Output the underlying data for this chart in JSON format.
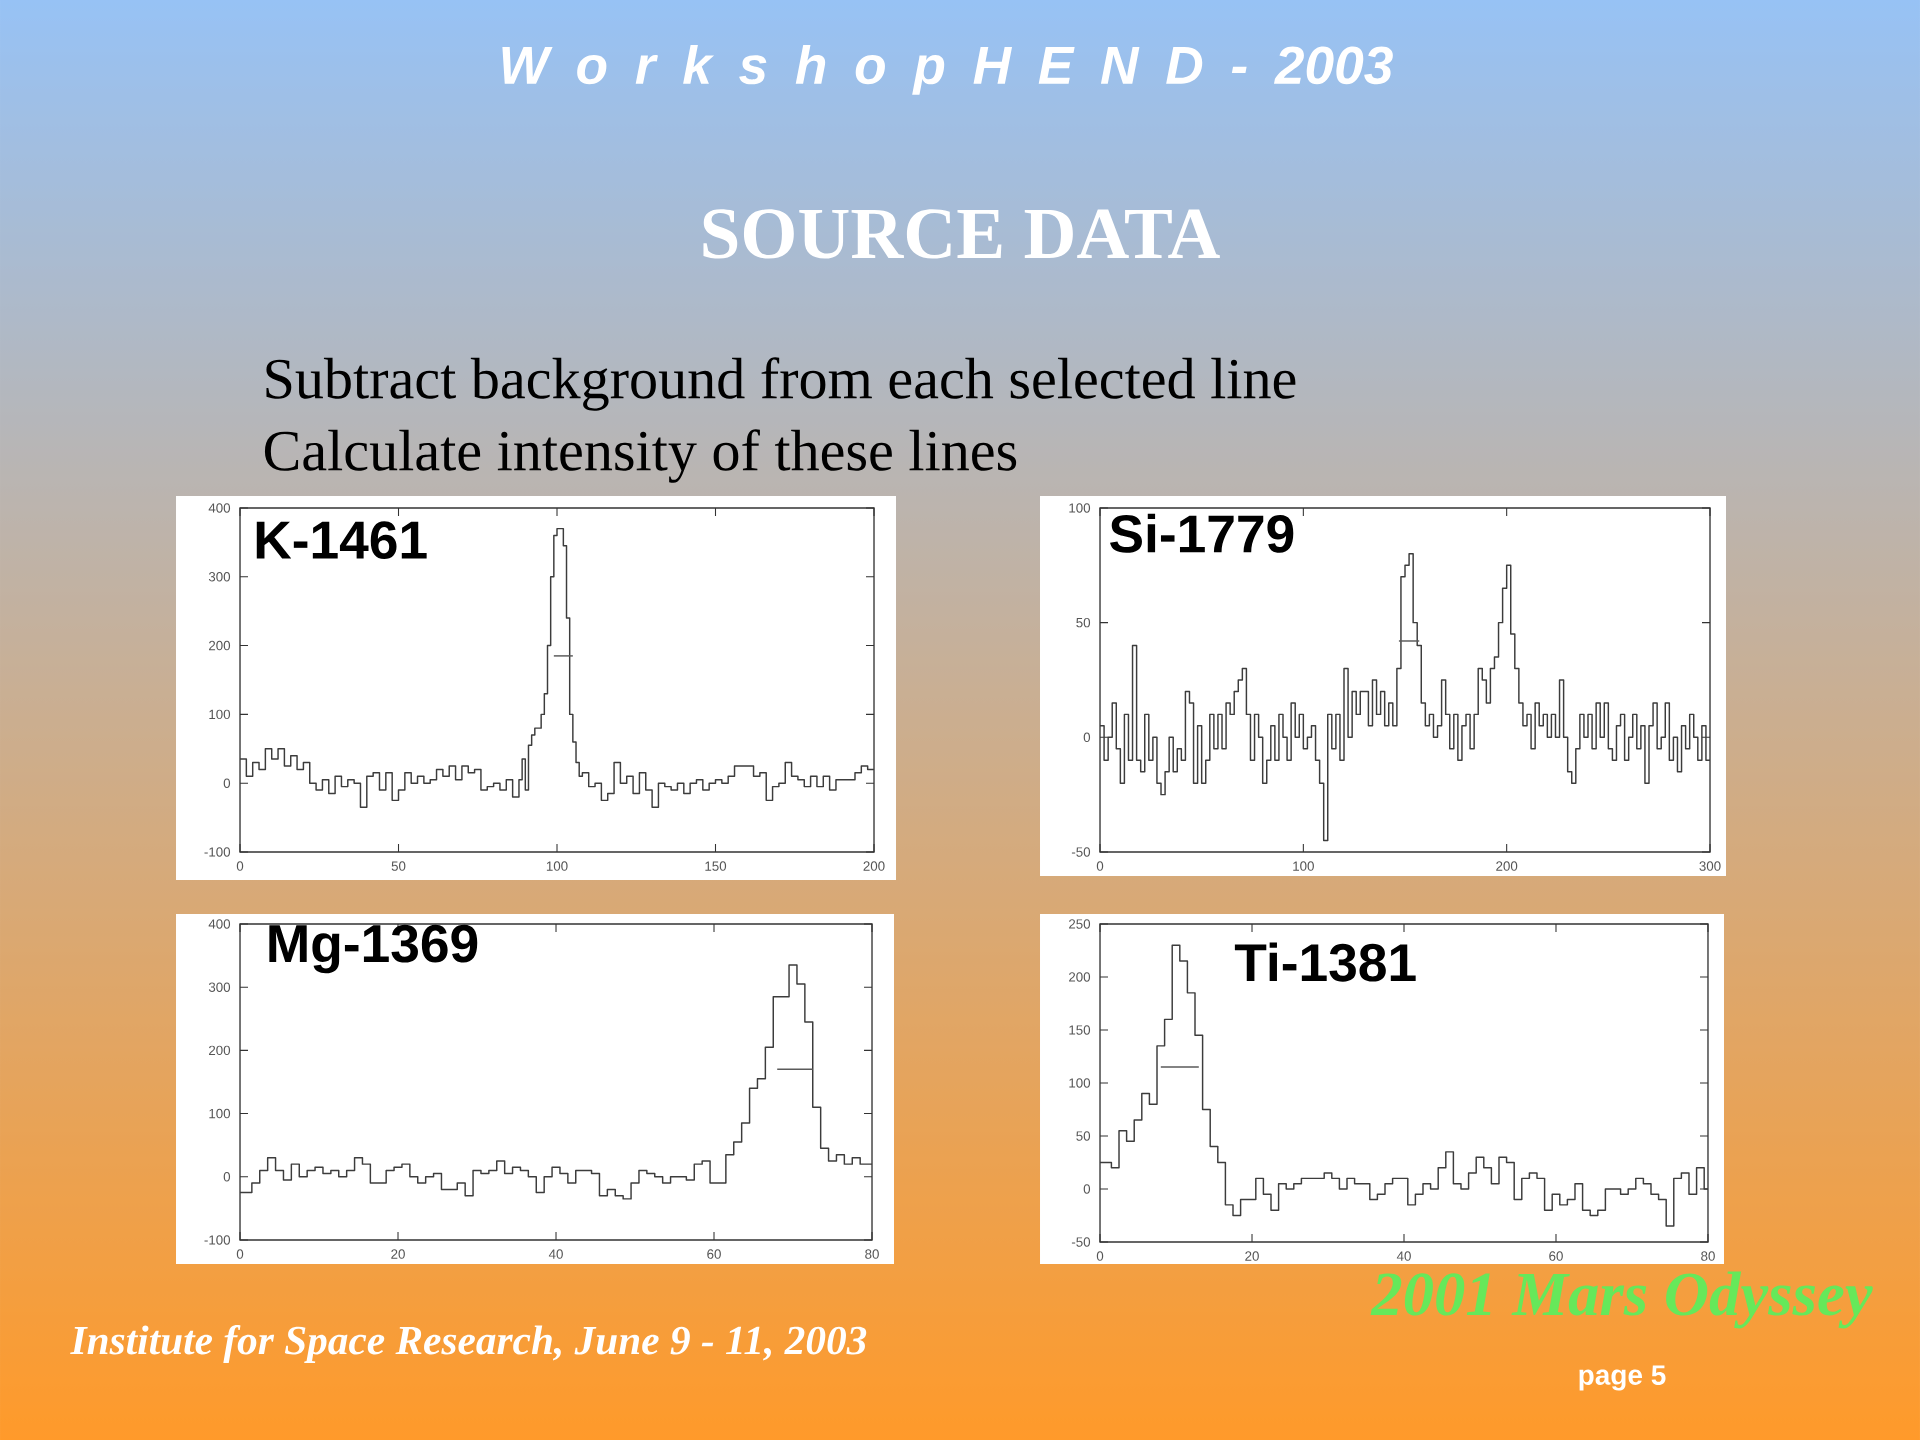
{
  "chart_data": [
    {
      "type": "other",
      "title": "SOURCE DATA",
      "annotations": [
        "W o r k s h o p  H E N D - 2003",
        "Subtract background from each selected line",
        "Calculate intensity of these lines",
        "2001 Mars Odyssey",
        "Institute for Space Research,  June 9 - 11, 2003",
        "page 5"
      ]
    },
    {
      "type": "step",
      "title": "K-1461",
      "xlim": [
        0,
        200
      ],
      "ylim": [
        -100,
        400
      ],
      "xticks": [
        0,
        50,
        100,
        150,
        200
      ],
      "yticks": [
        -100,
        0,
        100,
        200,
        300,
        400
      ],
      "series": [
        {
          "color": "#3c3c3c",
          "x": [
            0,
            2,
            4,
            6,
            8,
            10,
            12,
            14,
            16,
            18,
            20,
            22,
            24,
            26,
            28,
            30,
            32,
            34,
            36,
            38,
            40,
            42,
            44,
            46,
            48,
            50,
            52,
            54,
            56,
            58,
            60,
            62,
            64,
            66,
            68,
            70,
            72,
            74,
            76,
            78,
            80,
            82,
            84,
            86,
            88,
            89,
            90,
            91,
            92,
            93,
            94,
            95,
            96,
            97,
            98,
            99,
            100,
            101,
            102,
            103,
            104,
            105,
            106,
            107,
            108,
            110,
            112,
            114,
            116,
            118,
            120,
            122,
            124,
            126,
            128,
            130,
            132,
            134,
            136,
            138,
            140,
            142,
            144,
            146,
            148,
            150,
            152,
            154,
            156,
            158,
            160,
            162,
            164,
            166,
            168,
            170,
            172,
            174,
            176,
            178,
            180,
            182,
            184,
            186,
            188,
            190,
            192,
            194,
            196,
            198,
            200
          ],
          "values": [
            35,
            10,
            30,
            20,
            50,
            35,
            50,
            25,
            40,
            20,
            30,
            0,
            -10,
            5,
            -15,
            10,
            -5,
            5,
            0,
            -35,
            10,
            15,
            -10,
            15,
            -25,
            -10,
            15,
            0,
            10,
            0,
            5,
            20,
            10,
            25,
            5,
            25,
            15,
            20,
            -10,
            -5,
            0,
            -10,
            5,
            -20,
            5,
            35,
            -10,
            55,
            70,
            80,
            80,
            100,
            130,
            200,
            300,
            360,
            370,
            370,
            345,
            240,
            100,
            60,
            30,
            10,
            15,
            -5,
            0,
            -25,
            -15,
            30,
            0,
            10,
            -15,
            15,
            -10,
            -35,
            0,
            -5,
            -10,
            0,
            -15,
            0,
            5,
            -10,
            0,
            5,
            0,
            10,
            25,
            25,
            25,
            10,
            15,
            -25,
            -5,
            0,
            30,
            10,
            5,
            -5,
            10,
            -5,
            10,
            -10,
            5,
            5,
            5,
            15,
            25,
            20,
            20
          ]
        },
        {
          "type": "line",
          "color": "#5a5a5a",
          "x": [
            99,
            105
          ],
          "values": [
            185,
            185
          ]
        }
      ]
    },
    {
      "type": "step",
      "title": "Si-1779",
      "xlim": [
        0,
        300
      ],
      "ylim": [
        -50,
        100
      ],
      "xticks": [
        0,
        100,
        200,
        300
      ],
      "yticks": [
        -50,
        0,
        50,
        100
      ],
      "series": [
        {
          "color": "#3c3c3c",
          "x": [
            0,
            2,
            4,
            6,
            8,
            10,
            12,
            14,
            16,
            18,
            20,
            22,
            24,
            26,
            28,
            30,
            32,
            34,
            36,
            38,
            40,
            42,
            44,
            46,
            48,
            50,
            52,
            54,
            56,
            58,
            60,
            62,
            64,
            66,
            68,
            70,
            72,
            74,
            76,
            78,
            80,
            82,
            84,
            86,
            88,
            90,
            92,
            94,
            96,
            98,
            100,
            102,
            104,
            106,
            108,
            110,
            112,
            114,
            116,
            118,
            120,
            122,
            124,
            126,
            128,
            130,
            132,
            134,
            136,
            138,
            140,
            142,
            144,
            146,
            148,
            150,
            152,
            154,
            156,
            158,
            160,
            162,
            164,
            166,
            168,
            170,
            172,
            174,
            176,
            178,
            180,
            182,
            184,
            186,
            188,
            190,
            192,
            194,
            196,
            198,
            200,
            202,
            204,
            206,
            208,
            210,
            212,
            214,
            216,
            218,
            220,
            222,
            224,
            226,
            228,
            230,
            232,
            234,
            236,
            238,
            240,
            242,
            244,
            246,
            248,
            250,
            252,
            254,
            256,
            258,
            260,
            262,
            264,
            266,
            268,
            270,
            272,
            274,
            276,
            278,
            280,
            282,
            284,
            286,
            288,
            290,
            292,
            294,
            296,
            298,
            300
          ],
          "values": [
            5,
            -10,
            0,
            15,
            -5,
            -20,
            10,
            -10,
            40,
            -10,
            -15,
            10,
            -10,
            0,
            -20,
            -25,
            -15,
            0,
            -15,
            -5,
            -10,
            20,
            15,
            -20,
            5,
            -20,
            -10,
            10,
            -5,
            10,
            -5,
            15,
            10,
            20,
            25,
            30,
            10,
            -10,
            10,
            0,
            -20,
            -10,
            5,
            -10,
            10,
            0,
            -10,
            15,
            0,
            10,
            -5,
            0,
            5,
            -10,
            -20,
            -45,
            10,
            -5,
            10,
            -10,
            30,
            0,
            20,
            10,
            20,
            20,
            5,
            25,
            10,
            20,
            5,
            15,
            5,
            30,
            70,
            75,
            80,
            50,
            40,
            15,
            5,
            10,
            0,
            5,
            25,
            10,
            -5,
            10,
            -10,
            5,
            10,
            -5,
            10,
            30,
            25,
            15,
            30,
            35,
            50,
            65,
            75,
            45,
            30,
            15,
            5,
            10,
            -5,
            15,
            5,
            10,
            0,
            10,
            0,
            25,
            0,
            -15,
            -20,
            -5,
            10,
            0,
            10,
            -5,
            15,
            0,
            15,
            -5,
            -10,
            5,
            10,
            -10,
            0,
            10,
            -5,
            5,
            -20,
            5,
            15,
            -5,
            0,
            15,
            -10,
            0,
            -15,
            5,
            -5,
            10,
            0,
            -10,
            5,
            -10,
            -10
          ]
        },
        {
          "type": "line",
          "color": "#5a5a5a",
          "x": [
            147,
            157
          ],
          "values": [
            42,
            42
          ]
        }
      ]
    },
    {
      "type": "step",
      "title": "Mg-1369",
      "xlim": [
        0,
        80
      ],
      "ylim": [
        -100,
        400
      ],
      "xticks": [
        0,
        20,
        40,
        60,
        80
      ],
      "yticks": [
        -100,
        0,
        100,
        200,
        300,
        400
      ],
      "series": [
        {
          "color": "#3c3c3c",
          "x": [
            0,
            0.5,
            1.5,
            2.5,
            3.5,
            4.5,
            5.5,
            6.5,
            7.5,
            8.5,
            9.5,
            10.5,
            11.5,
            12.5,
            13.5,
            14.5,
            15.5,
            16.5,
            17.5,
            18.5,
            19.5,
            20.5,
            21.5,
            22.5,
            23.5,
            24.5,
            25.5,
            26.5,
            27.5,
            28.5,
            29.5,
            30.5,
            31.5,
            32.5,
            33.5,
            34.5,
            35.5,
            36.5,
            37.5,
            38.5,
            39.5,
            40.5,
            41.5,
            42.5,
            43.5,
            44.5,
            45.5,
            46.5,
            47.5,
            48.5,
            49.5,
            50.5,
            51.5,
            52.5,
            53.5,
            54.5,
            55.5,
            56.5,
            57.5,
            58.5,
            59.5,
            60.5,
            61.5,
            62.5,
            63.5,
            64.5,
            65.5,
            66.5,
            67.5,
            68.5,
            69.5,
            70.5,
            71.5,
            72.5,
            73.5,
            74.5,
            75.5,
            76.5,
            77.5,
            78.5,
            79.5,
            80
          ],
          "values": [
            -25,
            -25,
            -10,
            10,
            30,
            10,
            -5,
            20,
            0,
            10,
            15,
            5,
            10,
            0,
            10,
            30,
            20,
            -10,
            -10,
            10,
            15,
            20,
            0,
            -10,
            0,
            5,
            -20,
            -20,
            -10,
            -30,
            10,
            5,
            10,
            25,
            5,
            15,
            10,
            0,
            -25,
            0,
            15,
            5,
            -10,
            10,
            10,
            5,
            -30,
            -20,
            -30,
            -35,
            -10,
            10,
            5,
            0,
            -10,
            0,
            0,
            -5,
            20,
            25,
            -10,
            -10,
            35,
            55,
            85,
            140,
            155,
            205,
            285,
            285,
            335,
            305,
            245,
            110,
            45,
            25,
            35,
            20,
            30,
            20,
            20,
            20
          ]
        },
        {
          "type": "line",
          "color": "#5a5a5a",
          "x": [
            68,
            72.5
          ],
          "values": [
            170,
            170
          ]
        }
      ]
    },
    {
      "type": "step",
      "title": "Ti-1381",
      "xlim": [
        0,
        80
      ],
      "ylim": [
        -50,
        250
      ],
      "xticks": [
        0,
        20,
        40,
        60,
        80
      ],
      "yticks": [
        -50,
        0,
        50,
        100,
        150,
        200,
        250
      ],
      "series": [
        {
          "color": "#3c3c3c",
          "x": [
            0,
            0.5,
            1.5,
            2.5,
            3.5,
            4.5,
            5.5,
            6.5,
            7.5,
            8.5,
            9.5,
            10.5,
            11.5,
            12.5,
            13.5,
            14.5,
            15.5,
            16.5,
            17.5,
            18.5,
            19.5,
            20.5,
            21.5,
            22.5,
            23.5,
            24.5,
            25.5,
            26.5,
            27.5,
            28.5,
            29.5,
            30.5,
            31.5,
            32.5,
            33.5,
            34.5,
            35.5,
            36.5,
            37.5,
            38.5,
            39.5,
            40.5,
            41.5,
            42.5,
            43.5,
            44.5,
            45.5,
            46.5,
            47.5,
            48.5,
            49.5,
            50.5,
            51.5,
            52.5,
            53.5,
            54.5,
            55.5,
            56.5,
            57.5,
            58.5,
            59.5,
            60.5,
            61.5,
            62.5,
            63.5,
            64.5,
            65.5,
            66.5,
            67.5,
            68.5,
            69.5,
            70.5,
            71.5,
            72.5,
            73.5,
            74.5,
            75.5,
            76.5,
            77.5,
            78.5,
            79.5,
            80
          ],
          "values": [
            25,
            25,
            20,
            55,
            45,
            65,
            90,
            80,
            135,
            160,
            230,
            215,
            185,
            145,
            75,
            40,
            25,
            -15,
            -25,
            -10,
            -10,
            10,
            -5,
            -20,
            5,
            0,
            5,
            10,
            10,
            10,
            15,
            10,
            0,
            10,
            5,
            5,
            -10,
            -5,
            5,
            10,
            10,
            -15,
            -5,
            5,
            0,
            20,
            35,
            5,
            0,
            15,
            30,
            20,
            5,
            30,
            25,
            -10,
            10,
            15,
            10,
            -20,
            -5,
            -15,
            -10,
            5,
            -20,
            -25,
            -20,
            0,
            0,
            -5,
            0,
            10,
            5,
            -5,
            -10,
            -35,
            10,
            15,
            -5,
            20,
            0,
            0
          ]
        },
        {
          "type": "line",
          "color": "#5a5a5a",
          "x": [
            8,
            13
          ],
          "values": [
            115,
            115
          ]
        }
      ]
    }
  ]
}
